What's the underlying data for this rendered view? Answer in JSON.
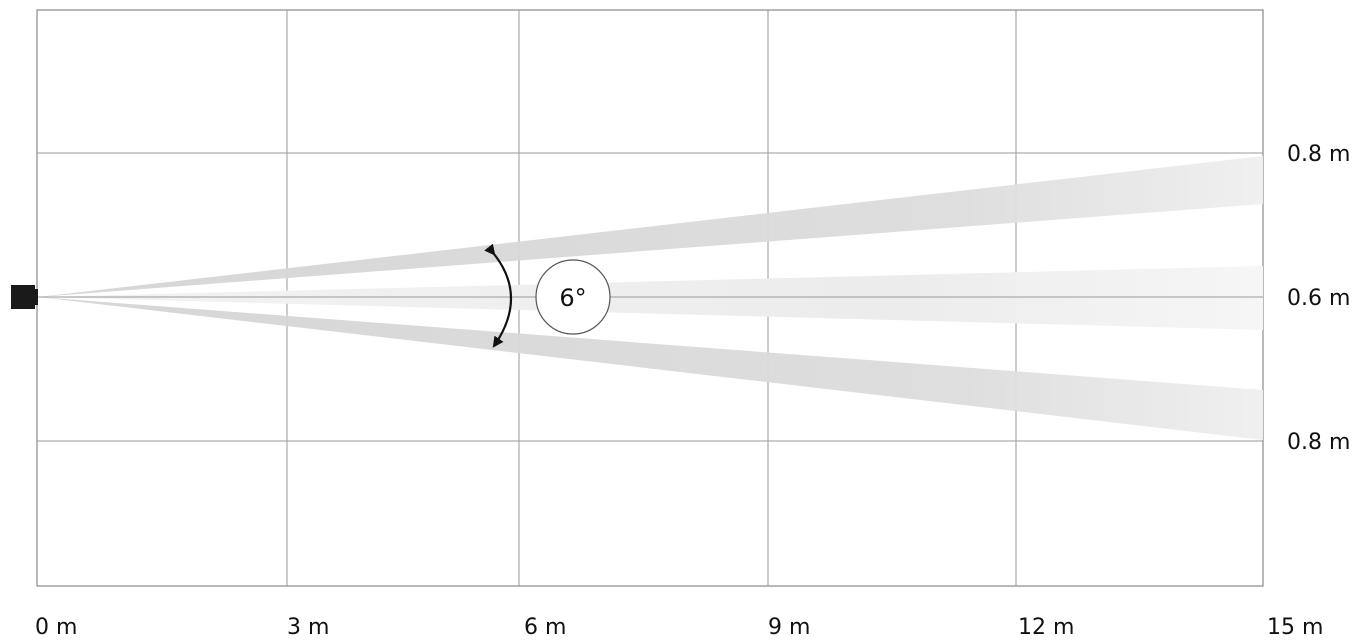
{
  "x_axis": {
    "ticks": [
      "0 m",
      "3 m",
      "6 m",
      "9 m",
      "12 m",
      "15 m"
    ]
  },
  "y_axis_right": {
    "labels": [
      "0.8 m",
      "0.6 m",
      "0.8 m"
    ]
  },
  "angle_label": "6°",
  "colors": {
    "grid": "#9a9a9a",
    "beam": "#d9d9d9",
    "beam_inner": "#ececec",
    "sensor": "#1a1a1a",
    "arrow": "#111111"
  },
  "icons": {
    "sensor": "sensor-square-icon",
    "angle_arrow": "double-curved-arrow-icon"
  }
}
